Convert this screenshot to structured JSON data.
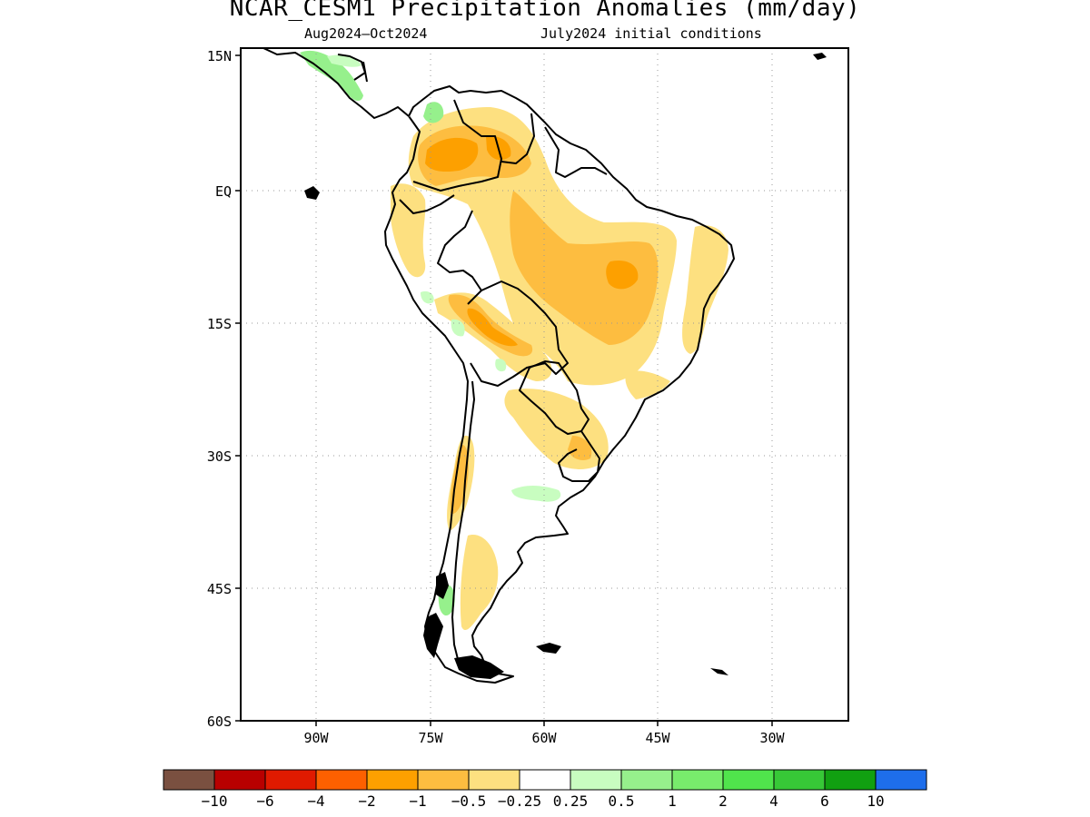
{
  "title": "NCAR_CESM1 Precipitation Anomalies (mm/day)",
  "subtitle_left": "Aug2024–Oct2024",
  "subtitle_right": "July2024 initial conditions",
  "lat_labels": [
    "15N",
    "EQ",
    "15S",
    "30S",
    "45S",
    "60S"
  ],
  "lon_labels": [
    "90W",
    "75W",
    "60W",
    "45W",
    "30W"
  ],
  "colorbar": {
    "colors": [
      "#7a5040",
      "#b80000",
      "#e01a00",
      "#fd6000",
      "#fda000",
      "#fdbd40",
      "#fde080",
      "#ffffff",
      "#c8fdc0",
      "#96f08c",
      "#78ec6c",
      "#50e44c",
      "#37c837",
      "#11a011",
      "#1e6eeb"
    ],
    "labels": [
      "−10",
      "−6",
      "−4",
      "−2",
      "−1",
      "−0.5",
      "−0.25",
      "0.25",
      "0.5",
      "1",
      "2",
      "4",
      "6",
      "10"
    ]
  }
}
